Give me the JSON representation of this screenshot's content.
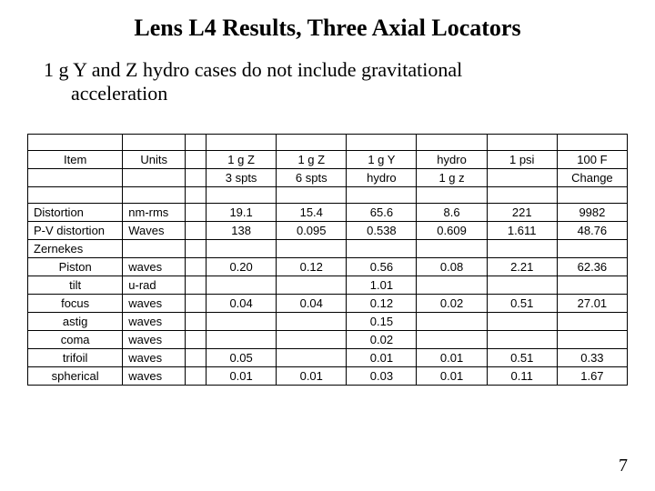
{
  "title": "Lens L4 Results, Three Axial Locators",
  "subtitle_line1": "1 g Y and Z hydro cases do not include gravitational",
  "subtitle_line2": "acceleration",
  "page_number": "7",
  "header": {
    "item": "Item",
    "units": "Units",
    "c1a": "1 g Z",
    "c1b": "3 spts",
    "c2a": "1 g Z",
    "c2b": "6 spts",
    "c3a": "1 g Y",
    "c3b": "hydro",
    "c4a": "hydro",
    "c4b": "1 g z",
    "c5a": "1 psi",
    "c5b": "",
    "c6a": "100 F",
    "c6b": "Change"
  },
  "rows": {
    "distortion": {
      "label": "Distortion",
      "units": "nm-rms",
      "v1": "19.1",
      "v2": "15.4",
      "v3": "65.6",
      "v4": "8.6",
      "v5": "221",
      "v6": "9982"
    },
    "pv": {
      "label": "P-V distortion",
      "units": "Waves",
      "v1": "138",
      "v2": "0.095",
      "v3": "0.538",
      "v4": "0.609",
      "v5": "1.611",
      "v6": "48.76"
    },
    "zernekes": {
      "label": "Zernekes",
      "units": "",
      "v1": "",
      "v2": "",
      "v3": "",
      "v4": "",
      "v5": "",
      "v6": ""
    },
    "piston": {
      "label": "Piston",
      "units": "waves",
      "v1": "0.20",
      "v2": "0.12",
      "v3": "0.56",
      "v4": "0.08",
      "v5": "2.21",
      "v6": "62.36"
    },
    "tilt": {
      "label": "tilt",
      "units": "u-rad",
      "v1": "",
      "v2": "",
      "v3": "1.01",
      "v4": "",
      "v5": "",
      "v6": ""
    },
    "focus": {
      "label": "focus",
      "units": "waves",
      "v1": "0.04",
      "v2": "0.04",
      "v3": "0.12",
      "v4": "0.02",
      "v5": "0.51",
      "v6": "27.01"
    },
    "astig": {
      "label": "astig",
      "units": "waves",
      "v1": "",
      "v2": "",
      "v3": "0.15",
      "v4": "",
      "v5": "",
      "v6": ""
    },
    "coma": {
      "label": "coma",
      "units": "waves",
      "v1": "",
      "v2": "",
      "v3": "0.02",
      "v4": "",
      "v5": "",
      "v6": ""
    },
    "trifoil": {
      "label": "trifoil",
      "units": "waves",
      "v1": "0.05",
      "v2": "",
      "v3": "0.01",
      "v4": "0.01",
      "v5": "0.51",
      "v6": "0.33"
    },
    "spherical": {
      "label": "spherical",
      "units": "waves",
      "v1": "0.01",
      "v2": "0.01",
      "v3": "0.03",
      "v4": "0.01",
      "v5": "0.11",
      "v6": "1.67"
    }
  }
}
